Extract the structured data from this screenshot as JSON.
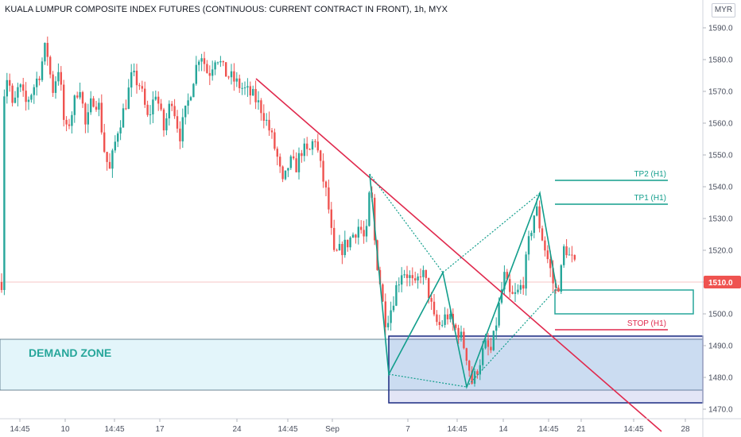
{
  "header": {
    "title": "KUALA LUMPUR COMPOSITE INDEX FUTURES (CONTINUOUS: CURRENT CONTRACT IN FRONT), 1h, MYX",
    "currency": "MYR"
  },
  "chart_data": {
    "type": "candlestick",
    "y_axis": {
      "range": [
        1465,
        1595
      ],
      "ticks": [
        1470.0,
        1480.0,
        1490.0,
        1500.0,
        1510.0,
        1520.0,
        1530.0,
        1540.0,
        1550.0,
        1560.0,
        1570.0,
        1580.0,
        1590.0
      ],
      "position": "right"
    },
    "x_axis": {
      "ticks": [
        "14:45",
        "10",
        "14:45",
        "17",
        "24",
        "14:45",
        "Sep",
        "7",
        "14:45",
        "14",
        "14:45",
        "21",
        "14:45",
        "28"
      ]
    },
    "last_price": {
      "value": 1510.0,
      "label": "1510.0",
      "color": "#ef5350"
    },
    "colors": {
      "up": "#26a69a",
      "down": "#ef5350",
      "pattern": "#129e8c",
      "trendline": "#e0294d"
    },
    "annotations": {
      "demand_zone": {
        "label": "DEMAND ZONE",
        "top": 1492.0,
        "bottom": 1476.0
      },
      "tp2": {
        "label": "TP2 (H1)",
        "price": 1542
      },
      "tp1": {
        "label": "TP1 (H1)",
        "price": 1534.5
      },
      "stop": {
        "label": "STOP (H1)",
        "price": 1495
      },
      "entry_box": {
        "top": 1507.5,
        "bottom": 1500
      },
      "harmonic_points": [
        1544,
        1481,
        1513,
        1477,
        1538,
        1508
      ],
      "trendline": {
        "from": 1574,
        "to": 1463
      }
    }
  }
}
